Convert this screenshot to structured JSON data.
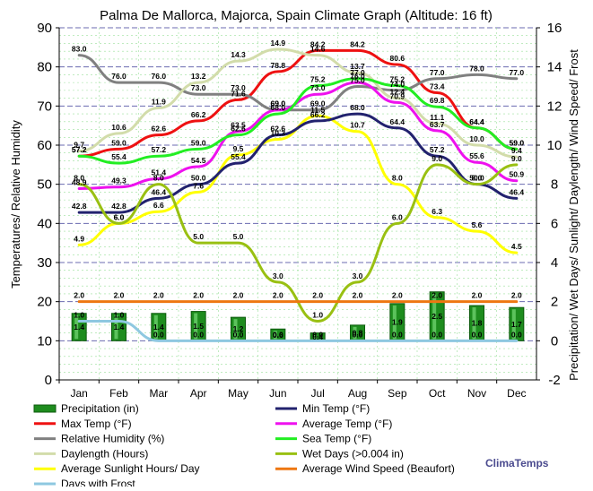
{
  "chart_data": {
    "type": "line",
    "title": "Palma De Mallorca, Majorca, Spain Climate Graph (Altitude: 16 ft)",
    "ylabel": "Temperatures/ Relative Humidity",
    "y2label": "Precipitation/ Wet Days/ Sunlight/ Daylength/ Wind Speed/ Frost",
    "ylim": [
      0,
      90
    ],
    "y2lim": [
      -2,
      16
    ],
    "yticks": [
      "0",
      "10",
      "20",
      "30",
      "40",
      "50",
      "60",
      "70",
      "80",
      "90"
    ],
    "y2ticks": [
      "-2",
      "0",
      "2",
      "4",
      "6",
      "8",
      "10",
      "12",
      "14",
      "16"
    ],
    "categories": [
      "Jan",
      "Feb",
      "Mar",
      "Apr",
      "May",
      "Jun",
      "Jul",
      "Aug",
      "Sep",
      "Oct",
      "Nov",
      "Dec"
    ],
    "bars": {
      "name": "Precipitation (in)",
      "color": "#1e8c1e",
      "axis": "right",
      "values": [
        1.4,
        1.4,
        1.4,
        1.5,
        1.2,
        0.6,
        0.4,
        0.8,
        1.9,
        2.5,
        1.8,
        1.7
      ],
      "labels": [
        "1.4",
        "1.4",
        "1.4",
        "1.5",
        "1.2",
        "0.6",
        "0.4",
        "0.8",
        "1.9",
        "2.5",
        "1.8",
        "1.7"
      ]
    },
    "series": [
      {
        "name": "Max Temp (°F)",
        "color": "#ee1111",
        "axis": "left",
        "values": [
          57.2,
          59.0,
          62.6,
          66.2,
          71.6,
          78.8,
          84.2,
          84.2,
          80.6,
          73.4,
          64.4,
          59.0
        ],
        "labels": [
          "57.2",
          "59.0",
          "62.6",
          "66.2",
          "71.6",
          "78.8",
          "84.2",
          "84.2",
          "80.6",
          "73.4",
          "64.4",
          "59.0"
        ]
      },
      {
        "name": "Relative Humidity (%)",
        "color": "#808080",
        "axis": "left",
        "values": [
          83.0,
          76.0,
          76.0,
          73.0,
          73.0,
          69.0,
          69.0,
          75.0,
          74.0,
          77.0,
          78.0,
          77.0
        ],
        "labels": [
          "83.0",
          "76.0",
          "76.0",
          "73.0",
          "73.0",
          "69.0",
          "69.0",
          "75.0",
          "74.0",
          "77.0",
          "78.0",
          "77.0"
        ]
      },
      {
        "name": "Daylength (Hours)",
        "color": "#d2dcaa",
        "axis": "right",
        "values": [
          9.7,
          10.6,
          11.9,
          13.2,
          14.3,
          14.9,
          14.6,
          13.7,
          12.4,
          11.1,
          10.0,
          9.4
        ],
        "labels": [
          "9.7",
          "10.6",
          "11.9",
          "13.2",
          "14.3",
          "14.9",
          "14.6",
          "13.7",
          "12.4",
          "11.1",
          "10.0",
          "9.4"
        ]
      },
      {
        "name": "Average Sunlight Hours/ Day",
        "color": "#ffff00",
        "axis": "right",
        "values": [
          4.9,
          6.0,
          6.6,
          7.6,
          9.5,
          10.3,
          11.5,
          10.7,
          8.0,
          6.3,
          5.6,
          4.5
        ],
        "labels": [
          "4.9",
          "6.0",
          "6.6",
          "7.6",
          "9.5",
          "10.3",
          "11.5",
          "10.7",
          "8.0",
          "6.3",
          "5.6",
          "4.5"
        ]
      },
      {
        "name": "Days with Frost",
        "color": "#8ec8e0",
        "axis": "right",
        "values": [
          1.0,
          1.0,
          0.0,
          0.0,
          0.0,
          0.0,
          0.0,
          0.0,
          0.0,
          0.0,
          0.0,
          0.0
        ],
        "labels": [
          "1.0",
          "1.0",
          "0.0",
          "0.0",
          "0.0",
          "0.0",
          "0.0",
          "0.0",
          "0.0",
          "0.0",
          "0.0",
          "0.0"
        ]
      },
      {
        "name": "Min Temp (°F)",
        "color": "#22226e",
        "axis": "left",
        "values": [
          42.8,
          42.8,
          46.4,
          50.0,
          55.4,
          62.6,
          66.2,
          68.0,
          64.4,
          57.2,
          50.0,
          46.4
        ],
        "labels": [
          "42.8",
          "42.8",
          "46.4",
          "50.0",
          "55.4",
          "62.6",
          "66.2",
          "68.0",
          "64.4",
          "57.2",
          "50.0",
          "46.4"
        ]
      },
      {
        "name": "Average Temp (°F)",
        "color": "#ee11ee",
        "axis": "left",
        "values": [
          48.9,
          49.3,
          51.4,
          54.5,
          63.5,
          69.0,
          73.0,
          76.0,
          70.9,
          63.7,
          55.6,
          50.9
        ],
        "labels": [
          "48.9",
          "49.3",
          "51.4",
          "54.5",
          "63.5",
          "69.0",
          "73.0",
          "76.0",
          "70.9",
          "63.7",
          "55.6",
          "50.9"
        ]
      },
      {
        "name": "Sea Temp (°F)",
        "color": "#22ee22",
        "axis": "left",
        "values": [
          57.2,
          55.4,
          57.2,
          59.0,
          62.6,
          68.0,
          75.2,
          77.0,
          75.2,
          69.8,
          64.4,
          59.0
        ],
        "labels": [
          "57.2",
          "55.4",
          "57.2",
          "59.0",
          "62.6",
          "68.0",
          "75.2",
          "77.0",
          "75.2",
          "69.8",
          "64.4",
          "59.0"
        ]
      },
      {
        "name": "Wet Days (>0.004 in)",
        "color": "#99c012",
        "axis": "right",
        "values": [
          8.0,
          6.0,
          8.0,
          5.0,
          5.0,
          3.0,
          1.0,
          3.0,
          6.0,
          9.0,
          8.0,
          9.0
        ],
        "labels": [
          "8.0",
          "6.0",
          "8.0",
          "5.0",
          "5.0",
          "3.0",
          "1.0",
          "3.0",
          "6.0",
          "9.0",
          "8.0",
          "9.0"
        ]
      },
      {
        "name": "Average Wind Speed (Beaufort)",
        "color": "#ee7711",
        "axis": "right",
        "values": [
          2.0,
          2.0,
          2.0,
          2.0,
          2.0,
          2.0,
          2.0,
          2.0,
          2.0,
          2.0,
          2.0,
          2.0
        ],
        "labels": [
          "2.0",
          "2.0",
          "2.0",
          "2.0",
          "2.0",
          "2.0",
          "2.0",
          "2.0",
          "2.0",
          "2.0",
          "2.0",
          "2.0"
        ]
      }
    ],
    "legend": [
      {
        "name": "Precipitation (in)",
        "color": "#1e8c1e",
        "kind": "bar"
      },
      {
        "name": "Min Temp (°F)",
        "color": "#22226e",
        "kind": "line"
      },
      {
        "name": "Max Temp (°F)",
        "color": "#ee1111",
        "kind": "line"
      },
      {
        "name": "Average Temp (°F)",
        "color": "#ee11ee",
        "kind": "line"
      },
      {
        "name": "Relative Humidity (%)",
        "color": "#808080",
        "kind": "line"
      },
      {
        "name": "Sea Temp (°F)",
        "color": "#22ee22",
        "kind": "line"
      },
      {
        "name": "Daylength (Hours)",
        "color": "#d2dcaa",
        "kind": "line"
      },
      {
        "name": "Wet Days (>0.004 in)",
        "color": "#99c012",
        "kind": "line"
      },
      {
        "name": "Average Sunlight Hours/ Day",
        "color": "#ffff00",
        "kind": "line"
      },
      {
        "name": "Average Wind Speed (Beaufort)",
        "color": "#ee7711",
        "kind": "line"
      },
      {
        "name": "Days with Frost",
        "color": "#8ec8e0",
        "kind": "line"
      }
    ],
    "legend_position": "bottom",
    "watermark": "ClimaTemps",
    "grid": true
  }
}
